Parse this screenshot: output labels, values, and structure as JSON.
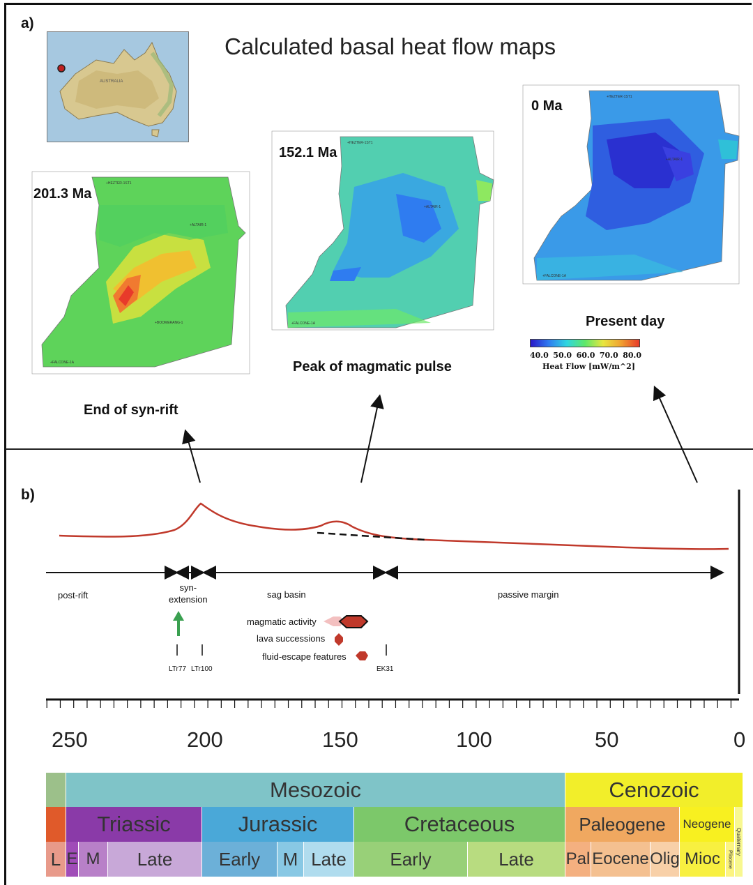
{
  "panel_a": {
    "label": "a)",
    "title": "Calculated basal heat flow maps",
    "maps": [
      {
        "age": "201.3 Ma",
        "caption": "End of syn-rift"
      },
      {
        "age": "152.1 Ma",
        "caption": "Peak of magmatic pulse"
      },
      {
        "age": "0 Ma",
        "caption": "Present day"
      }
    ],
    "colorbar": {
      "ticks": [
        "40.0",
        "50.0",
        "60.0",
        "70.0",
        "80.0"
      ],
      "label": "Heat Flow [mW/m^2]",
      "colors": [
        "#2a18c8",
        "#2f7cf0",
        "#2fd6e0",
        "#5ee86a",
        "#e8e640",
        "#f0a030",
        "#e83a2a"
      ]
    }
  },
  "panel_b": {
    "label": "b)",
    "phases": [
      "post-rift",
      "syn-\nextension",
      "sag basin",
      "passive margin"
    ],
    "legend": [
      "magmatic activity",
      "lava successions",
      "fluid-escape features"
    ],
    "markers": [
      "LTr77",
      "LTr100",
      "EK31"
    ],
    "axis_ticks": [
      "250",
      "200",
      "150",
      "100",
      "50",
      "0"
    ],
    "curve_color": "#c0392b"
  },
  "timescale": {
    "eras": [
      {
        "name": "",
        "color": "#9cc08a"
      },
      {
        "name": "Mesozoic",
        "color": "#7fc4c8"
      },
      {
        "name": "Cenozoic",
        "color": "#f2ee2a"
      }
    ],
    "periods": [
      {
        "name": "",
        "color": "#e05a2a"
      },
      {
        "name": "Triassic",
        "color": "#8a3aa8"
      },
      {
        "name": "Jurassic",
        "color": "#4aa8d8"
      },
      {
        "name": "Cretaceous",
        "color": "#7cc86a"
      },
      {
        "name": "Paleogene",
        "color": "#f0a860"
      },
      {
        "name": "Neogene",
        "color": "#f8f020"
      },
      {
        "name": "Quaternary",
        "color": "#f8f890"
      }
    ],
    "epochs": [
      {
        "name": "L",
        "color": "#e89a8a"
      },
      {
        "name": "E",
        "color": "#a04cb8"
      },
      {
        "name": "M",
        "color": "#b880c8"
      },
      {
        "name": "Late",
        "color": "#c8a8d8"
      },
      {
        "name": "Early",
        "color": "#6cb0d8"
      },
      {
        "name": "M",
        "color": "#88c8e4"
      },
      {
        "name": "Late",
        "color": "#b0dcee"
      },
      {
        "name": "Early",
        "color": "#98d078"
      },
      {
        "name": "Late",
        "color": "#b8dc80"
      },
      {
        "name": "Pal",
        "color": "#f4b080"
      },
      {
        "name": "Eocene",
        "color": "#f4c090"
      },
      {
        "name": "Olig",
        "color": "#f8d0a8"
      },
      {
        "name": "Mioc",
        "color": "#f8f040"
      },
      {
        "name": "Pliocene",
        "color": "#fcf480"
      },
      {
        "name": "",
        "color": "#fcf8b0"
      }
    ]
  }
}
